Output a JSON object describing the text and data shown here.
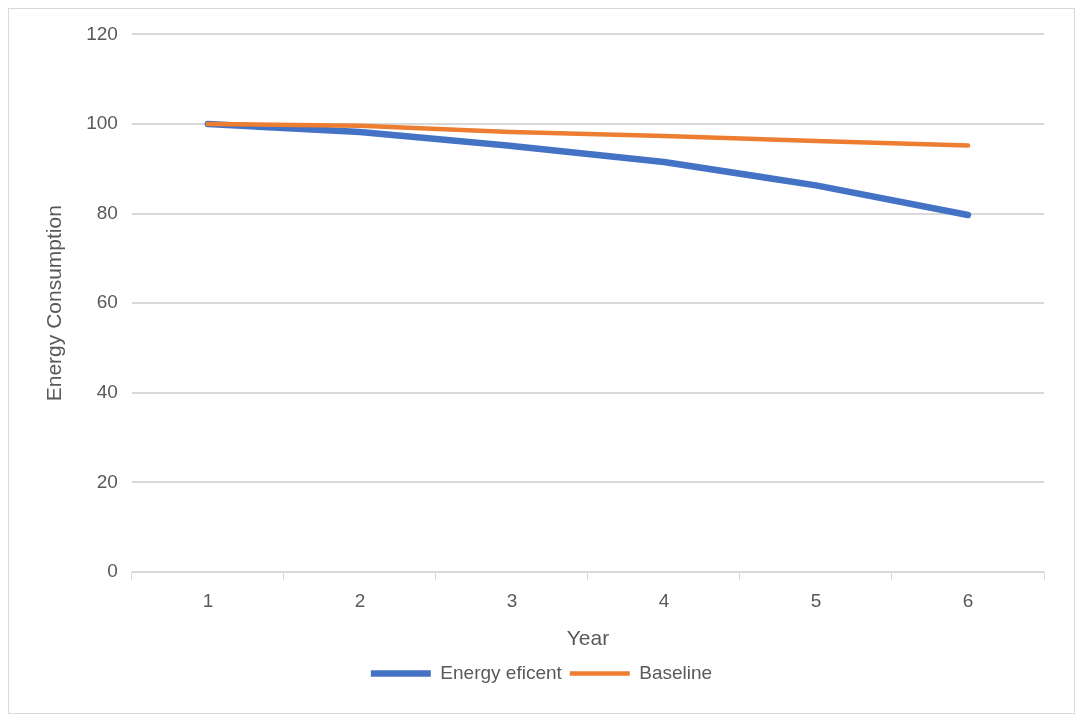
{
  "chart_data": {
    "type": "line",
    "xlabel": "Year",
    "ylabel": "Energy Consumption",
    "categories": [
      "1",
      "2",
      "3",
      "4",
      "5",
      "6"
    ],
    "series": [
      {
        "name": "Energy eficent",
        "color": "#4472c4",
        "values": [
          100,
          98.2,
          95.1,
          91.5,
          86.3,
          79.7
        ]
      },
      {
        "name": "Baseline",
        "color": "#ed7d31",
        "values": [
          100,
          99.6,
          98.2,
          97.3,
          96.2,
          95.2
        ]
      }
    ],
    "ylim": [
      0,
      120
    ],
    "yticks": [
      0,
      20,
      40,
      60,
      80,
      100,
      120
    ],
    "grid": "y",
    "legend": "bottom",
    "marker": "none",
    "line_style": "solid"
  }
}
